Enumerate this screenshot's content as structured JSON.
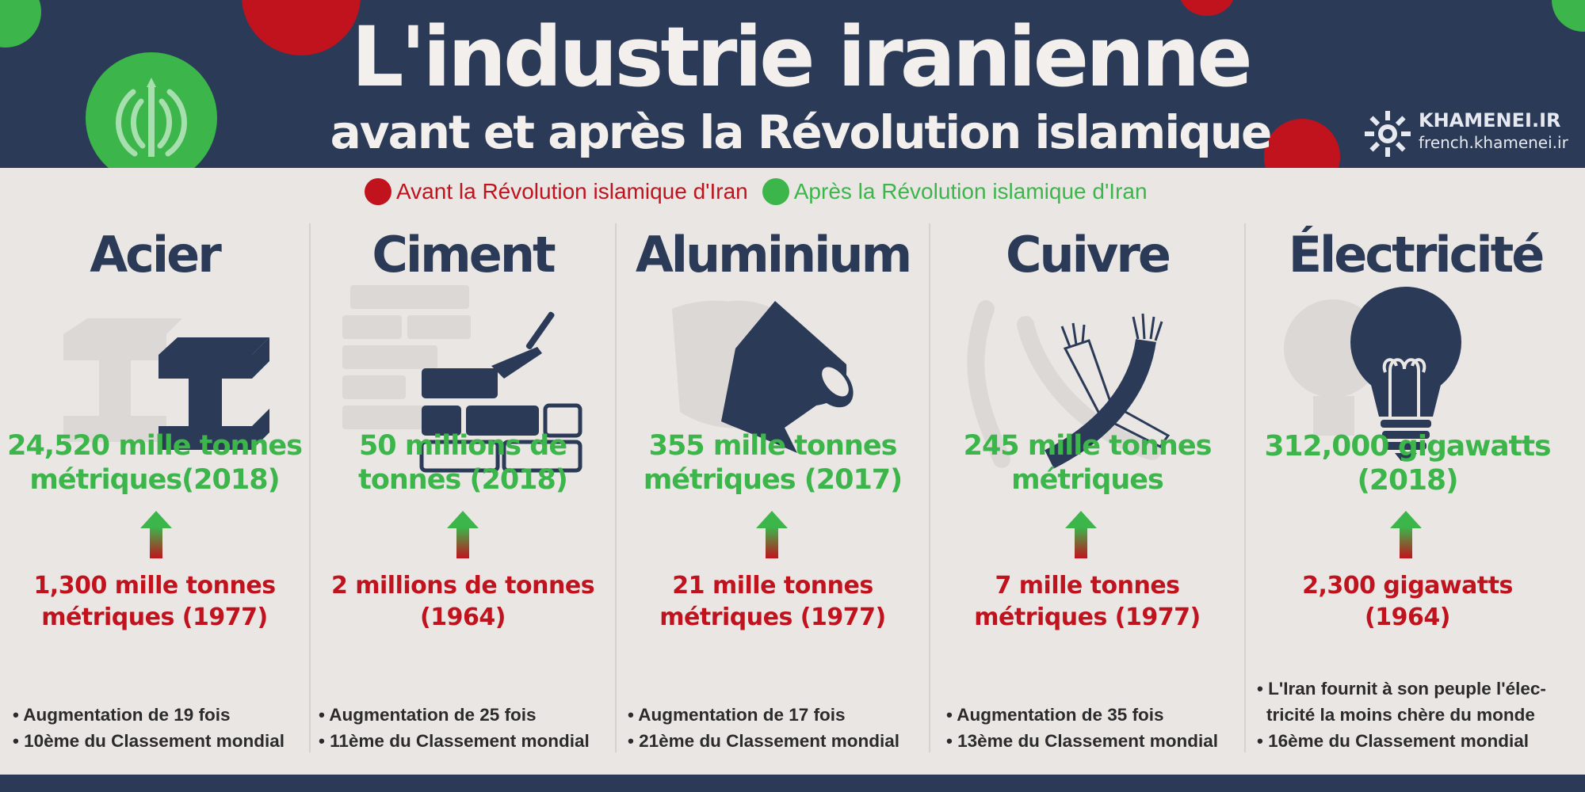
{
  "header": {
    "title": "L'industrie iranienne",
    "subtitle": "avant et après la Révolution islamique",
    "brand_name": "KHAMENEI.IR",
    "brand_url": "french.khamenei.ir"
  },
  "colors": {
    "navy": "#2b3a57",
    "green": "#3cb54a",
    "red": "#c1131e",
    "background": "#e9e6e4"
  },
  "legend": {
    "before": "Avant la Révolution islamique d'Iran",
    "after": "Après la Révolution islamique d'Iran"
  },
  "columns": [
    {
      "title": "Acier",
      "icon": "steel-beam-icon",
      "after_line1": "24,520 mille tonnes",
      "after_line2": "métriques(2018)",
      "before_line1": "1,300 mille tonnes",
      "before_line2": "métriques (1977)",
      "notes": [
        "• Augmentation de 19 fois",
        "• 10ème du Classement mondial"
      ]
    },
    {
      "title": "Ciment",
      "icon": "bricks-trowel-icon",
      "after_line1": "50 millions de",
      "after_line2": "tonnes (2018)",
      "before_line1": "2 millions de tonnes",
      "before_line2": "(1964)",
      "notes": [
        "• Augmentation de 25 fois",
        "• 11ème du Classement mondial"
      ]
    },
    {
      "title": "Aluminium",
      "icon": "aluminium-foil-roll-icon",
      "after_line1": "355 mille tonnes",
      "after_line2": "métriques (2017)",
      "before_line1": "21 mille tonnes",
      "before_line2": "métriques (1977)",
      "notes": [
        "• Augmentation de 17 fois",
        "• 21ème du Classement mondial"
      ]
    },
    {
      "title": "Cuivre",
      "icon": "copper-cable-icon",
      "after_line1": "245 mille tonnes",
      "after_line2": "métriques",
      "before_line1": "7 mille tonnes",
      "before_line2": "métriques (1977)",
      "notes": [
        "• Augmentation de 35 fois",
        "• 13ème du Classement mondial"
      ]
    },
    {
      "title": "Électricité",
      "icon": "light-bulb-icon",
      "after_line1": "312,000 gigawatts",
      "after_line2": "(2018)",
      "before_line1": "2,300 gigawatts",
      "before_line2": "(1964)",
      "notes": [
        "• L'Iran fournit à son peuple l'élec-",
        "tricité la moins chère du monde",
        "• 16ème du Classement mondial"
      ]
    }
  ]
}
